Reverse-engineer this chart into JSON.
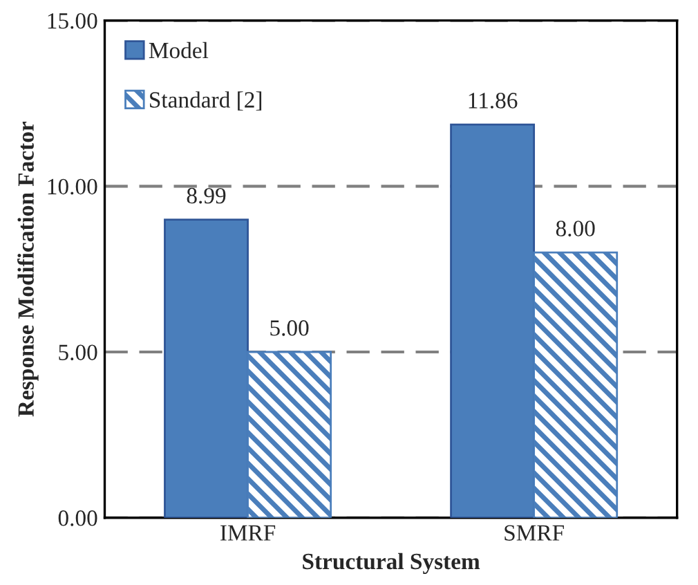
{
  "chart_data": {
    "type": "bar",
    "xlabel": "Structural System",
    "ylabel": "Response Modification Factor",
    "categories": [
      "IMRF",
      "SMRF"
    ],
    "series": [
      {
        "name": "Model",
        "color": "#4a7ebb",
        "values": [
          8.99,
          11.86
        ],
        "value_labels": [
          "8.99",
          "11.86"
        ]
      },
      {
        "name": "Standard [2]",
        "color": "#4a7ebb",
        "values": [
          5.0,
          8.0
        ],
        "value_labels": [
          "5.00",
          "8.00"
        ]
      }
    ],
    "ylim": [
      0,
      15
    ],
    "yticks": [
      {
        "value": 0,
        "label": "0.00"
      },
      {
        "value": 5,
        "label": "5.00"
      },
      {
        "value": 10,
        "label": "10.00"
      },
      {
        "value": 15,
        "label": "15.00"
      }
    ],
    "grid": "y",
    "legend": "top left"
  }
}
